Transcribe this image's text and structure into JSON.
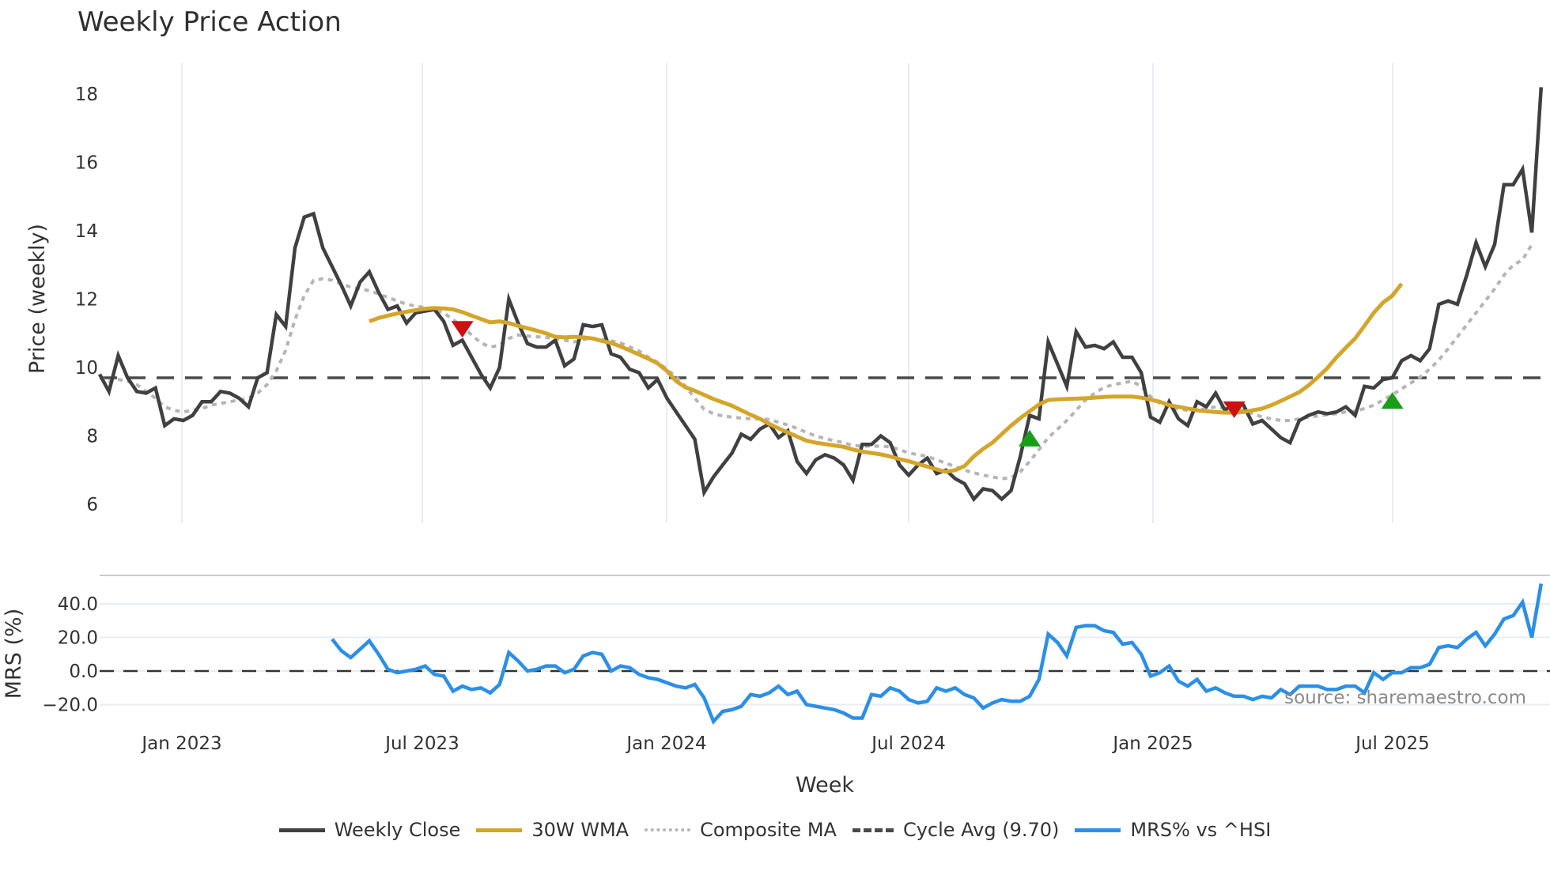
{
  "title": "Weekly Price Action",
  "watermark": "source: sharemaestro.com",
  "legend": [
    {
      "label": "Weekly Close",
      "color": "#404040",
      "style": "solid"
    },
    {
      "label": "30W WMA",
      "color": "#d4a52a",
      "style": "solid"
    },
    {
      "label": "Composite MA",
      "color": "#b5b5b5",
      "style": "dotted"
    },
    {
      "label": "Cycle Avg (9.70)",
      "color": "#4a4a4a",
      "style": "dashed"
    },
    {
      "label": "MRS% vs ^HSI",
      "color": "#2b8fe8",
      "style": "solid"
    }
  ],
  "colors": {
    "close": "#404040",
    "wma": "#d4a52a",
    "composite": "#b5b5b5",
    "cycle": "#4a4a4a",
    "mrs": "#2b8fe8",
    "buy": "#1a9e1a",
    "sell": "#cc1111",
    "grid": "#e8edf3"
  },
  "chart_data": [
    {
      "type": "line",
      "title": "Weekly Price Action",
      "xlabel": "Week",
      "ylabel": "Price (weekly)",
      "ylim": [
        5.6,
        18.9
      ],
      "yticks": [
        6,
        8,
        10,
        12,
        14,
        16,
        18
      ],
      "xticks": [
        "Jan 2023",
        "Jul 2023",
        "Jan 2024",
        "Jul 2024",
        "Jan 2025",
        "Jul 2025"
      ],
      "x_start": "2022-10-31",
      "x_step_weeks": 1,
      "grid": true,
      "series": [
        {
          "name": "Weekly Close",
          "values": [
            9.8,
            9.3,
            10.35,
            9.7,
            9.3,
            9.25,
            9.4,
            8.3,
            8.5,
            8.45,
            8.6,
            9.0,
            9.0,
            9.3,
            9.25,
            9.1,
            8.85,
            9.7,
            9.85,
            11.55,
            11.2,
            13.5,
            14.4,
            14.5,
            13.5,
            12.95,
            12.4,
            11.8,
            12.5,
            12.8,
            12.2,
            11.7,
            11.8,
            11.3,
            11.6,
            11.65,
            11.7,
            11.35,
            10.65,
            10.8,
            10.3,
            9.8,
            9.4,
            10.0,
            12.0,
            11.3,
            10.7,
            10.6,
            10.6,
            10.8,
            10.05,
            10.25,
            11.25,
            11.2,
            11.25,
            10.4,
            10.3,
            9.95,
            9.85,
            9.4,
            9.65,
            9.1,
            8.7,
            8.3,
            7.9,
            6.35,
            6.8,
            7.15,
            7.5,
            8.05,
            7.9,
            8.2,
            8.35,
            7.95,
            8.15,
            7.25,
            6.9,
            7.3,
            7.45,
            7.35,
            7.15,
            6.7,
            7.75,
            7.75,
            8.0,
            7.8,
            7.15,
            6.85,
            7.15,
            7.35,
            6.9,
            7.0,
            6.75,
            6.6,
            6.15,
            6.45,
            6.4,
            6.15,
            6.4,
            7.4,
            8.6,
            8.5,
            10.75,
            10.1,
            9.45,
            11.05,
            10.6,
            10.65,
            10.55,
            10.75,
            10.3,
            10.3,
            9.85,
            8.55,
            8.4,
            9.0,
            8.5,
            8.3,
            9.0,
            8.85,
            9.25,
            8.75,
            8.95,
            8.9,
            8.35,
            8.45,
            8.2,
            7.95,
            7.8,
            8.45,
            8.6,
            8.7,
            8.65,
            8.7,
            8.85,
            8.6,
            9.45,
            9.4,
            9.65,
            9.7,
            10.2,
            10.35,
            10.2,
            10.55,
            11.85,
            11.95,
            11.85,
            12.7,
            13.65,
            12.95,
            13.6,
            15.35,
            15.35,
            15.8,
            13.95,
            18.2
          ]
        },
        {
          "name": "30W WMA",
          "start_index": 29,
          "values": [
            11.35,
            11.45,
            11.52,
            11.58,
            11.63,
            11.68,
            11.72,
            11.74,
            11.73,
            11.7,
            11.62,
            11.52,
            11.42,
            11.32,
            11.35,
            11.3,
            11.22,
            11.15,
            11.08,
            11.0,
            10.9,
            10.88,
            10.9,
            10.88,
            10.85,
            10.78,
            10.72,
            10.62,
            10.5,
            10.38,
            10.26,
            10.12,
            9.9,
            9.6,
            9.42,
            9.32,
            9.2,
            9.08,
            8.98,
            8.88,
            8.75,
            8.62,
            8.5,
            8.35,
            8.22,
            8.1,
            7.98,
            7.86,
            7.8,
            7.76,
            7.72,
            7.68,
            7.6,
            7.54,
            7.5,
            7.46,
            7.4,
            7.32,
            7.26,
            7.18,
            7.1,
            7.02,
            6.95,
            7.0,
            7.12,
            7.4,
            7.62,
            7.8,
            8.05,
            8.3,
            8.52,
            8.72,
            8.92,
            9.05,
            9.07,
            9.08,
            9.09,
            9.1,
            9.12,
            9.14,
            9.15,
            9.15,
            9.15,
            9.12,
            9.06,
            9.0,
            8.9,
            8.85,
            8.8,
            8.75,
            8.72,
            8.7,
            8.68,
            8.68,
            8.7,
            8.75,
            8.8,
            8.9,
            9.02,
            9.15,
            9.28,
            9.48,
            9.72,
            9.98,
            10.3,
            10.58,
            10.85,
            11.22,
            11.6,
            11.9,
            12.1,
            12.45
          ]
        },
        {
          "name": "Composite MA",
          "values": [
            9.7,
            9.6,
            9.65,
            9.6,
            9.5,
            9.3,
            9.1,
            8.85,
            8.75,
            8.7,
            8.75,
            8.8,
            8.9,
            8.95,
            9.0,
            9.05,
            9.1,
            9.25,
            9.5,
            9.9,
            10.5,
            11.4,
            12.1,
            12.55,
            12.6,
            12.55,
            12.45,
            12.35,
            12.3,
            12.25,
            12.15,
            12.05,
            11.95,
            11.85,
            11.8,
            11.75,
            11.7,
            11.6,
            11.4,
            11.2,
            10.95,
            10.72,
            10.6,
            10.65,
            10.85,
            10.95,
            10.92,
            10.9,
            10.88,
            10.85,
            10.8,
            10.75,
            10.82,
            10.85,
            10.82,
            10.78,
            10.72,
            10.6,
            10.48,
            10.3,
            10.15,
            9.95,
            9.72,
            9.45,
            9.1,
            8.78,
            8.65,
            8.58,
            8.55,
            8.52,
            8.5,
            8.5,
            8.48,
            8.4,
            8.32,
            8.22,
            8.1,
            8.0,
            7.92,
            7.86,
            7.8,
            7.72,
            7.7,
            7.7,
            7.7,
            7.68,
            7.6,
            7.5,
            7.45,
            7.4,
            7.3,
            7.2,
            7.1,
            7.0,
            6.92,
            6.85,
            6.8,
            6.75,
            6.78,
            6.95,
            7.25,
            7.6,
            7.95,
            8.2,
            8.45,
            8.75,
            9.05,
            9.25,
            9.42,
            9.5,
            9.55,
            9.6,
            9.45,
            9.15,
            8.95,
            8.85,
            8.78,
            8.75,
            8.75,
            8.8,
            8.85,
            8.8,
            8.78,
            8.75,
            8.65,
            8.55,
            8.5,
            8.45,
            8.45,
            8.5,
            8.55,
            8.58,
            8.62,
            8.65,
            8.7,
            8.72,
            8.8,
            8.9,
            9.05,
            9.2,
            9.38,
            9.55,
            9.72,
            9.95,
            10.22,
            10.55,
            10.9,
            11.25,
            11.6,
            11.95,
            12.3,
            12.7,
            13.0,
            13.15,
            13.6
          ]
        },
        {
          "name": "Cycle Avg (9.70)",
          "constant": 9.7,
          "style": "dashed"
        }
      ],
      "markers": [
        {
          "type": "sell",
          "shape": "triangle-down",
          "index": 39,
          "value": 11.15
        },
        {
          "type": "buy",
          "shape": "triangle-up",
          "index": 100,
          "value": 7.9
        },
        {
          "type": "sell",
          "shape": "triangle-down",
          "index": 122,
          "value": 8.8
        },
        {
          "type": "buy",
          "shape": "triangle-up",
          "index": 139,
          "value": 9.0
        }
      ]
    },
    {
      "type": "line",
      "title": "",
      "xlabel": "Week",
      "ylabel": "MRS (%)",
      "ylim": [
        -28,
        48
      ],
      "yticks": [
        -20.0,
        0.0,
        20.0,
        40.0
      ],
      "ytick_labels": [
        "−20.0",
        "0.0",
        "20.0",
        "40.0"
      ],
      "reference_line": 0.0,
      "series": [
        {
          "name": "MRS% vs ^HSI",
          "start_index": 25,
          "values": [
            19,
            12,
            8,
            13,
            18,
            10,
            1,
            -1,
            0,
            1,
            3,
            -2,
            -3,
            -12,
            -9,
            -11,
            -10,
            -13,
            -8,
            11,
            6,
            0,
            1,
            3,
            3,
            -1,
            1,
            9,
            11,
            10,
            0,
            3,
            2,
            -2,
            -4,
            -5,
            -7,
            -9,
            -10,
            -8,
            -16,
            -30,
            -24,
            -23,
            -21,
            -14,
            -15,
            -13,
            -9,
            -14,
            -12,
            -20,
            -21,
            -22,
            -23,
            -25,
            -28,
            -28,
            -14,
            -15,
            -10,
            -12,
            -17,
            -19,
            -18,
            -10,
            -12,
            -10,
            -14,
            -16,
            -22,
            -19,
            -17,
            -18,
            -18,
            -15,
            -5,
            22,
            17,
            9,
            26,
            27,
            27,
            24,
            23,
            16,
            17,
            10,
            -3,
            -1,
            3,
            -6,
            -9,
            -5,
            -12,
            -10,
            -13,
            -15,
            -15,
            -17,
            -15,
            -16,
            -11,
            -14,
            -9,
            -9,
            -9,
            -11,
            -11,
            -9,
            -9,
            -13,
            -1,
            -5,
            -1,
            -1,
            2,
            2,
            4,
            14,
            15,
            14,
            19,
            23,
            15,
            22,
            31,
            33,
            41,
            20,
            52
          ]
        }
      ]
    }
  ]
}
